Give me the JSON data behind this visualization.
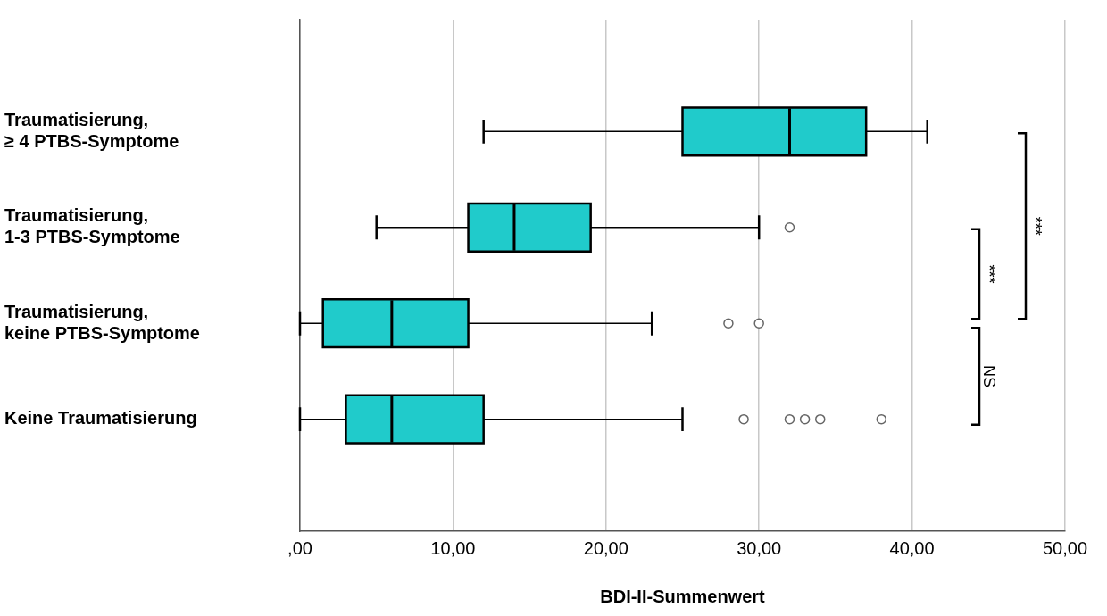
{
  "chart_data": {
    "type": "box",
    "orientation": "horizontal",
    "xlabel": "BDI-II-Summenwert",
    "categories": [
      "Traumatisierung, ≥ 4 PTBS-Symptome",
      "Traumatisierung, 1-3 PTBS-Symptome",
      "Traumatisierung, keine PTBS-Symptome",
      "Keine Traumatisierung"
    ],
    "color": "#20cbcb",
    "boxes": [
      {
        "low": 12,
        "q1": 25,
        "median": 32,
        "q3": 37,
        "high": 41
      },
      {
        "low": 5,
        "q1": 11,
        "median": 14,
        "q3": 19,
        "high": 30,
        "outliers": [
          32
        ]
      },
      {
        "low": 0,
        "q1": 1.5,
        "median": 6,
        "q3": 11,
        "high": 23,
        "outliers": [
          28,
          30
        ]
      },
      {
        "low": 0,
        "q1": 3,
        "median": 6,
        "q3": 12,
        "high": 25,
        "outliers": [
          29,
          32,
          33,
          34,
          38
        ]
      }
    ],
    "xlim": [
      0,
      50
    ],
    "xticks": [
      {
        "value": 0,
        "label": ",00"
      },
      {
        "value": 10,
        "label": "10,00"
      },
      {
        "value": 20,
        "label": "20,00"
      },
      {
        "value": 30,
        "label": "30,00"
      },
      {
        "value": 40,
        "label": "40,00"
      },
      {
        "value": 50,
        "label": "50,00"
      }
    ],
    "grid": "x",
    "annotations": [
      "***",
      "***",
      "NS"
    ]
  }
}
